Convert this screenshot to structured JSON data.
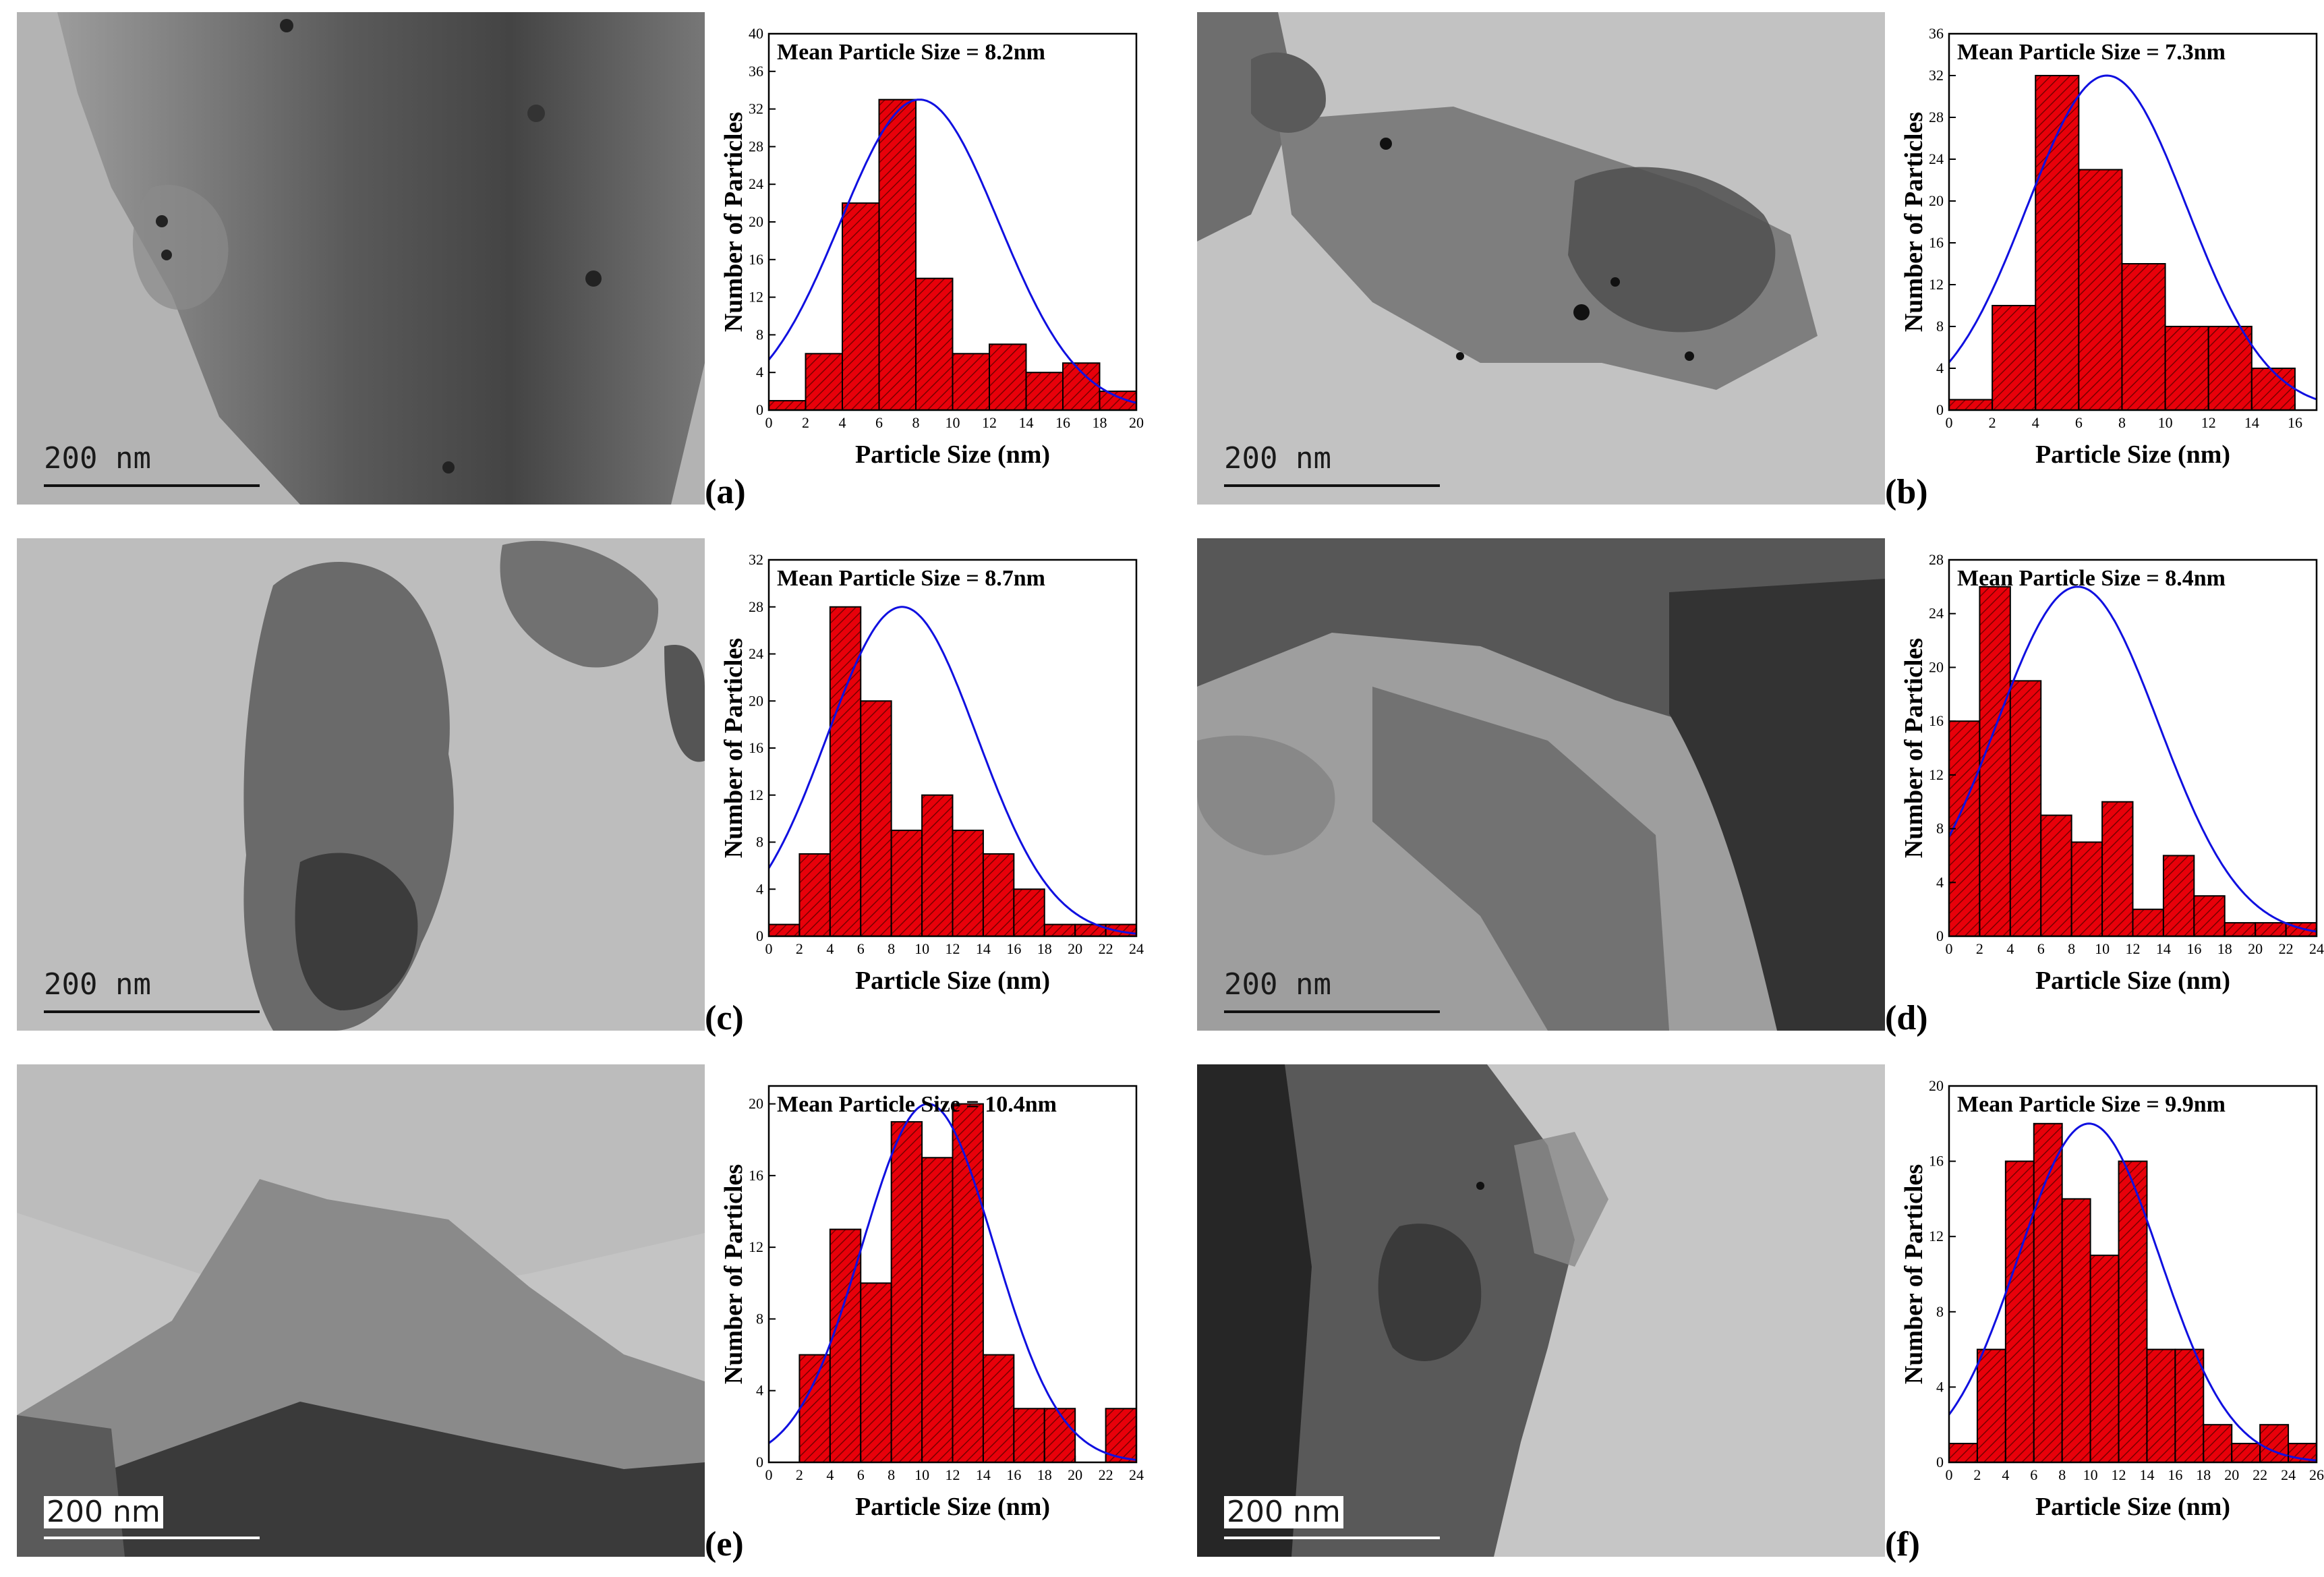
{
  "colors": {
    "bar_fill": "#e8000a",
    "bar_hatch": "#7a0000",
    "fit_curve": "#1010e0"
  },
  "panels": [
    {
      "scale_label": "200 nm",
      "chart_data": {
        "type": "bar",
        "title": "Mean Particle Size = 8.2nm",
        "xlabel": "Particle Size (nm)",
        "ylabel": "Number of Particles",
        "panel_label": "(a)",
        "xlim": [
          0,
          20
        ],
        "ylim": [
          0,
          40
        ],
        "xticks": [
          0,
          2,
          4,
          6,
          8,
          10,
          12,
          14,
          16,
          18,
          20
        ],
        "yticks": [
          0,
          4,
          8,
          12,
          16,
          20,
          24,
          28,
          32,
          36,
          40
        ],
        "bin_width": 2,
        "x": [
          1,
          3,
          5,
          7,
          9,
          11,
          13,
          15,
          17,
          19
        ],
        "values": [
          1,
          6,
          22,
          33,
          14,
          6,
          7,
          4,
          5,
          2
        ],
        "fit": {
          "type": "gaussian",
          "mean": 8.2,
          "peak": 33,
          "sigma": 4.3
        }
      }
    },
    {
      "scale_label": "200 nm",
      "chart_data": {
        "type": "bar",
        "title": "Mean Particle Size = 7.3nm",
        "xlabel": "Particle Size (nm)",
        "ylabel": "Number of Particles",
        "panel_label": "(b)",
        "xlim": [
          0,
          17
        ],
        "ylim": [
          0,
          36
        ],
        "xticks": [
          0,
          2,
          4,
          6,
          8,
          10,
          12,
          14,
          16
        ],
        "yticks": [
          0,
          4,
          8,
          12,
          16,
          20,
          24,
          28,
          32,
          36
        ],
        "bin_width": 2,
        "x": [
          1,
          3,
          5,
          7,
          9,
          11,
          13,
          15
        ],
        "values": [
          1,
          10,
          32,
          23,
          14,
          8,
          8,
          4
        ],
        "fit": {
          "type": "gaussian",
          "mean": 7.3,
          "peak": 32,
          "sigma": 3.7
        }
      }
    },
    {
      "scale_label": "200 nm",
      "chart_data": {
        "type": "bar",
        "title": "Mean Particle Size = 8.7nm",
        "xlabel": "Particle Size (nm)",
        "ylabel": "Number of Particles",
        "panel_label": "(c)",
        "xlim": [
          0,
          24
        ],
        "ylim": [
          0,
          32
        ],
        "xticks": [
          0,
          2,
          4,
          6,
          8,
          10,
          12,
          14,
          16,
          18,
          20,
          22,
          24
        ],
        "yticks": [
          0,
          4,
          8,
          12,
          16,
          20,
          24,
          28,
          32
        ],
        "bin_width": 2,
        "x": [
          1,
          3,
          5,
          7,
          9,
          11,
          13,
          15,
          17,
          19,
          21,
          23
        ],
        "values": [
          1,
          7,
          28,
          20,
          9,
          12,
          9,
          7,
          4,
          1,
          1,
          1
        ],
        "fit": {
          "type": "gaussian",
          "mean": 8.7,
          "peak": 28,
          "sigma": 4.9
        }
      }
    },
    {
      "scale_label": "200 nm",
      "chart_data": {
        "type": "bar",
        "title": "Mean Particle Size = 8.4nm",
        "xlabel": "Particle Size (nm)",
        "ylabel": "Number of Particles",
        "panel_label": "(d)",
        "xlim": [
          0,
          24
        ],
        "ylim": [
          0,
          28
        ],
        "xticks": [
          0,
          2,
          4,
          6,
          8,
          10,
          12,
          14,
          16,
          18,
          20,
          22,
          24
        ],
        "yticks": [
          0,
          4,
          8,
          12,
          16,
          20,
          24,
          28
        ],
        "bin_width": 2,
        "x": [
          1,
          3,
          5,
          7,
          9,
          11,
          13,
          15,
          17,
          19,
          21,
          23
        ],
        "values": [
          16,
          26,
          19,
          9,
          7,
          10,
          2,
          6,
          3,
          1,
          1,
          1
        ],
        "fit": {
          "type": "gaussian",
          "mean": 8.4,
          "peak": 26,
          "sigma": 5.3
        }
      }
    },
    {
      "scale_label": "200 nm",
      "chart_data": {
        "type": "bar",
        "title": "Mean Particle Size = 10.4nm",
        "xlabel": "Particle Size (nm)",
        "ylabel": "Number of Particles",
        "panel_label": "(e)",
        "xlim": [
          0,
          24
        ],
        "ylim": [
          0,
          21
        ],
        "xticks": [
          0,
          2,
          4,
          6,
          8,
          10,
          12,
          14,
          16,
          18,
          20,
          22,
          24
        ],
        "yticks": [
          0,
          4,
          8,
          12,
          16,
          20
        ],
        "bin_width": 2,
        "x": [
          3,
          5,
          7,
          9,
          11,
          13,
          15,
          17,
          19,
          23
        ],
        "values": [
          6,
          13,
          10,
          19,
          17,
          20,
          6,
          3,
          3,
          3
        ],
        "fit": {
          "type": "gaussian",
          "mean": 10.4,
          "peak": 20,
          "sigma": 4.3
        }
      }
    },
    {
      "scale_label": "200 nm",
      "chart_data": {
        "type": "bar",
        "title": "Mean Particle Size = 9.9nm",
        "xlabel": "Particle Size (nm)",
        "ylabel": "Number of Particles",
        "panel_label": "(f)",
        "xlim": [
          0,
          26
        ],
        "ylim": [
          0,
          20
        ],
        "xticks": [
          0,
          2,
          4,
          6,
          8,
          10,
          12,
          14,
          16,
          18,
          20,
          22,
          24,
          26
        ],
        "yticks": [
          0,
          4,
          8,
          12,
          16,
          20
        ],
        "bin_width": 2,
        "x": [
          1,
          3,
          5,
          7,
          9,
          11,
          13,
          15,
          17,
          19,
          21,
          23,
          25
        ],
        "values": [
          1,
          6,
          16,
          18,
          14,
          11,
          16,
          6,
          6,
          2,
          1,
          2,
          1
        ],
        "fit": {
          "type": "gaussian",
          "mean": 9.9,
          "peak": 18,
          "sigma": 5.0
        }
      }
    }
  ]
}
